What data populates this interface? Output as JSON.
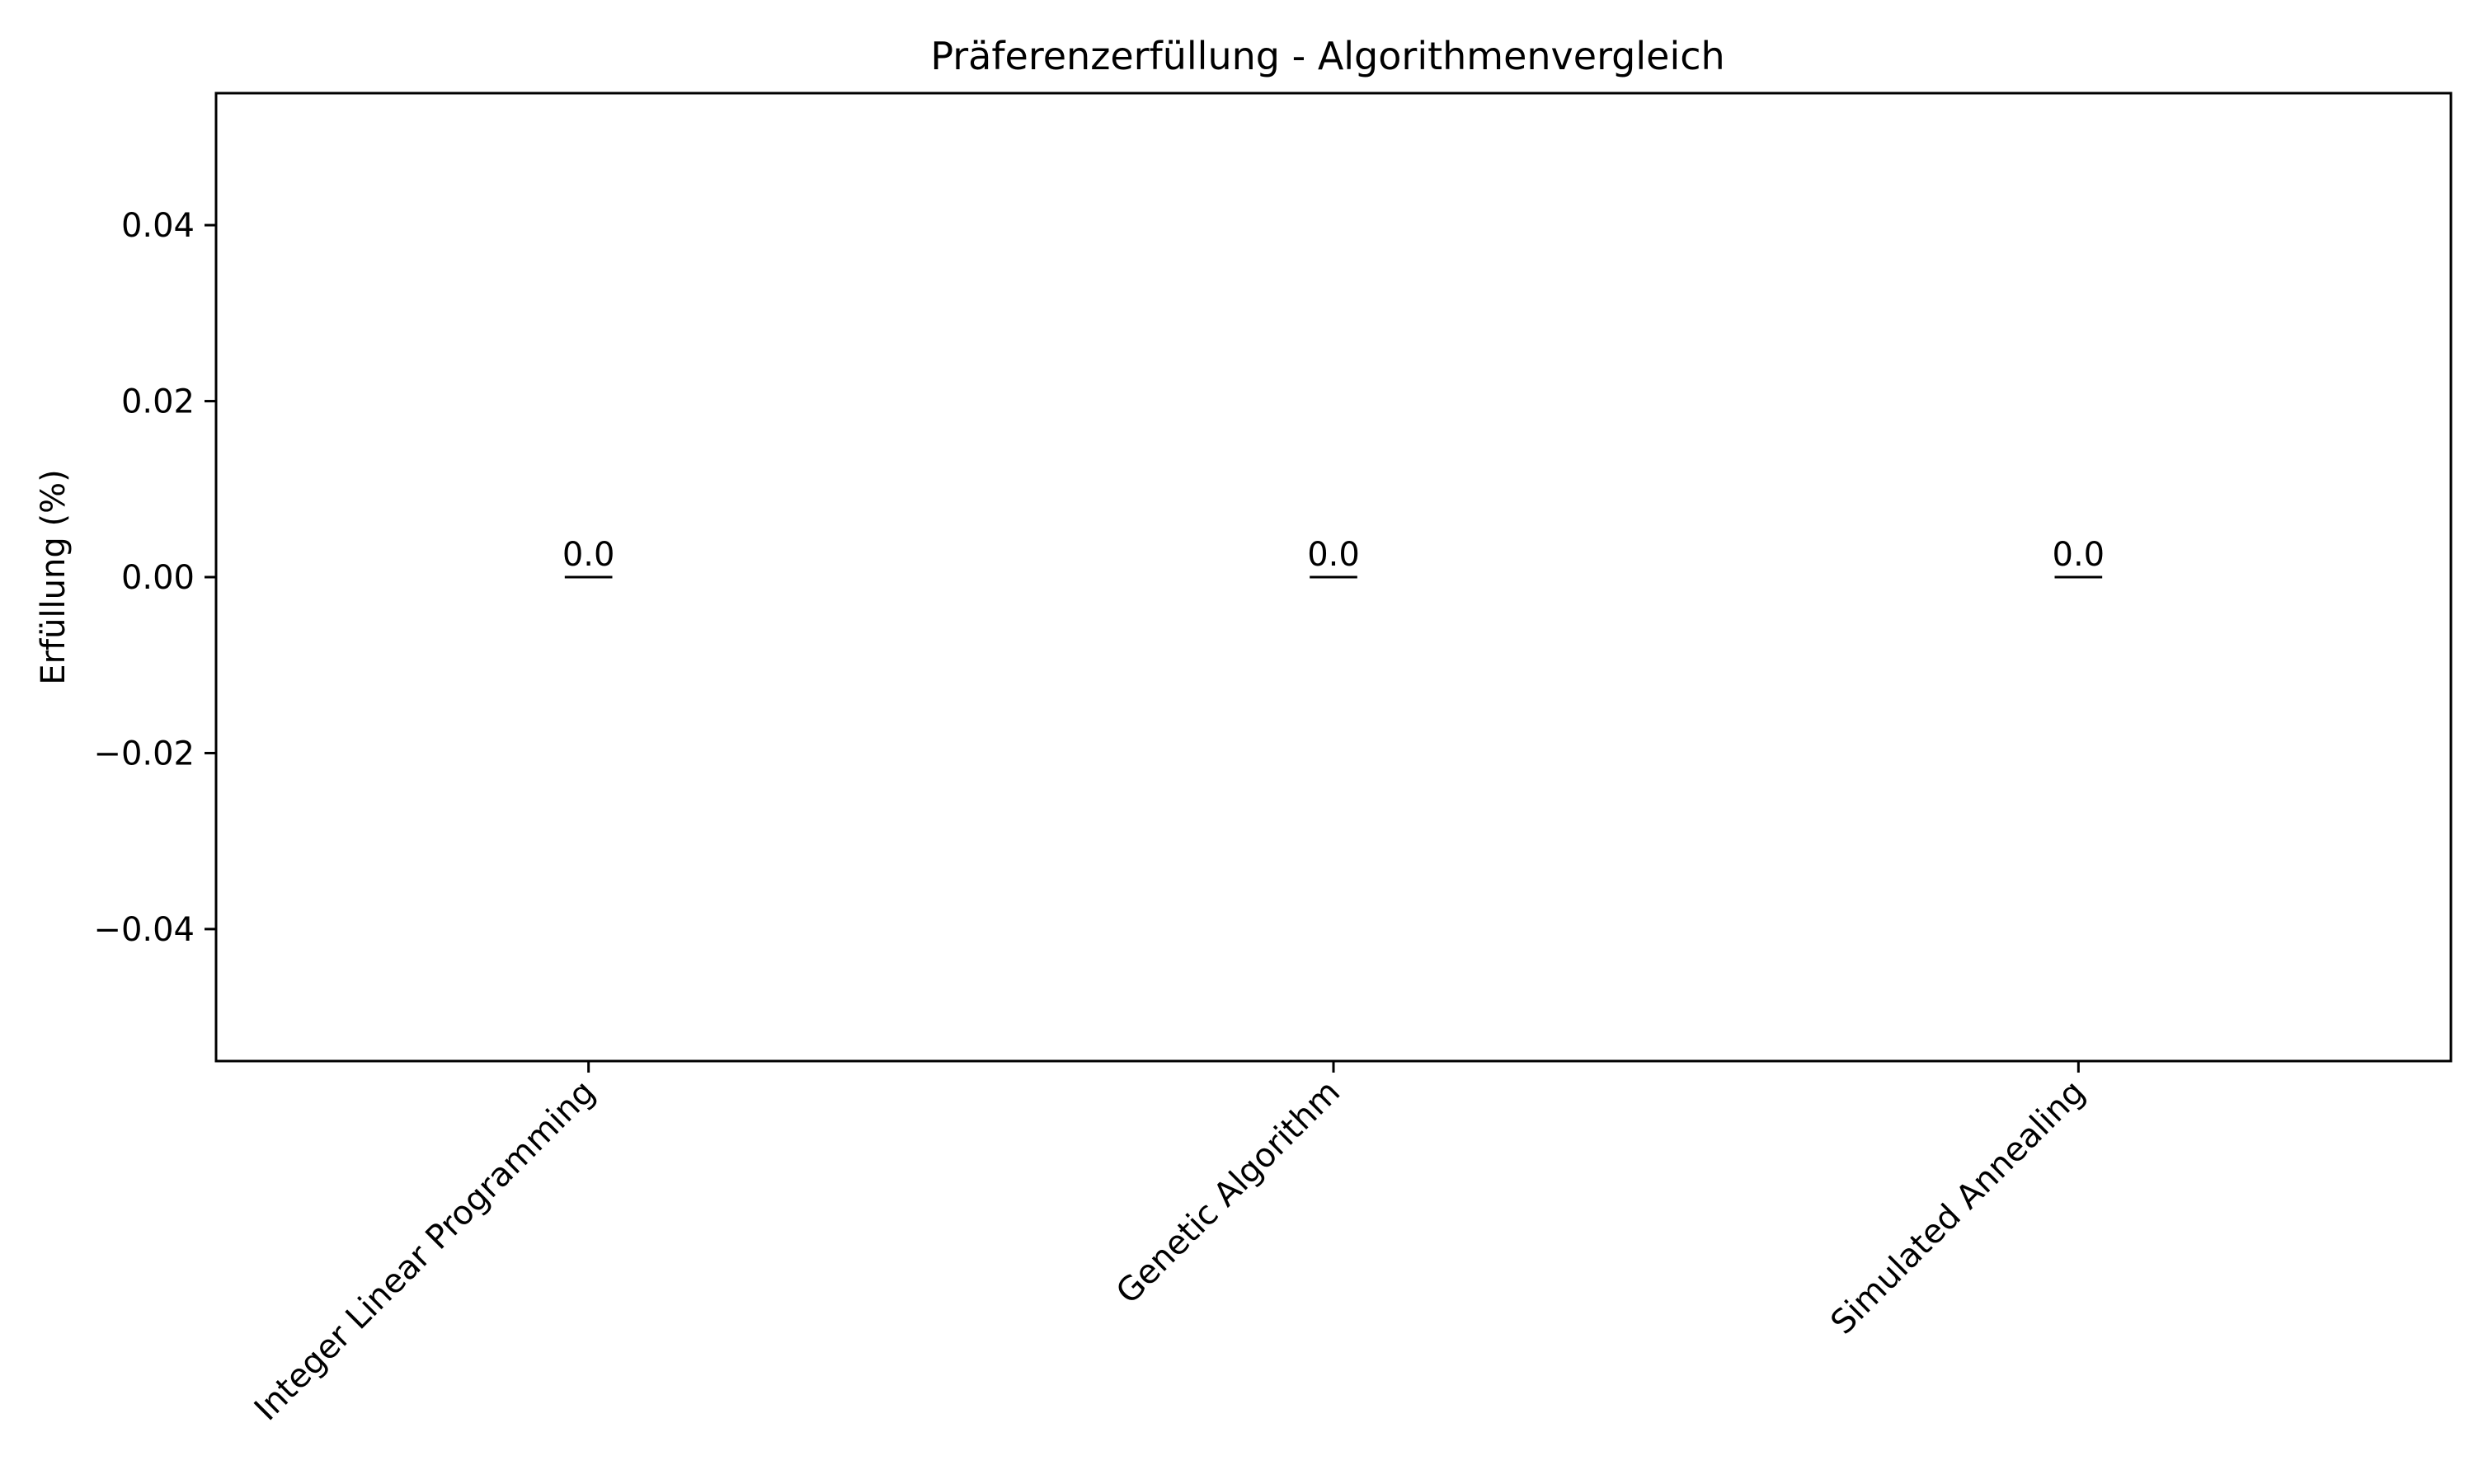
{
  "chart_data": {
    "type": "bar",
    "title": "Präferenzerfüllung - Algorithmenvergleich",
    "xlabel": "",
    "ylabel": "Erfüllung (%)",
    "categories": [
      "Integer Linear Programming",
      "Genetic Algorithm",
      "Simulated Annealing"
    ],
    "values": [
      0.0,
      0.0,
      0.0
    ],
    "data_labels": [
      "0.0",
      "0.0",
      "0.0"
    ],
    "ylim": [
      -0.055,
      0.055
    ],
    "yticks": [
      -0.04,
      -0.02,
      0.0,
      0.02,
      0.04
    ],
    "ytick_labels": [
      "−0.04",
      "−0.02",
      "0.00",
      "0.02",
      "0.04"
    ],
    "grid": false,
    "legend": "none",
    "bar_color": "#000000"
  }
}
